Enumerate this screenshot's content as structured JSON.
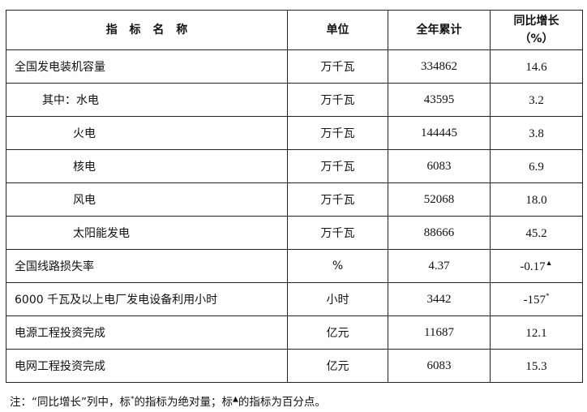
{
  "header": {
    "name": "指 标 名 称",
    "unit": "单位",
    "total": "全年累计",
    "growth_line1": "同比增长",
    "growth_line2": "（%）"
  },
  "rows": [
    {
      "name": "全国发电装机容量",
      "unit": "万千瓦",
      "total": "334862",
      "growth": "14.6",
      "mark": ""
    },
    {
      "name": "其中：水电",
      "unit": "万千瓦",
      "total": "43595",
      "growth": "3.2",
      "mark": ""
    },
    {
      "name": "火电",
      "unit": "万千瓦",
      "total": "144445",
      "growth": "3.8",
      "mark": ""
    },
    {
      "name": "核电",
      "unit": "万千瓦",
      "total": "6083",
      "growth": "6.9",
      "mark": ""
    },
    {
      "name": "风电",
      "unit": "万千瓦",
      "total": "52068",
      "growth": "18.0",
      "mark": ""
    },
    {
      "name": "太阳能发电",
      "unit": "万千瓦",
      "total": "88666",
      "growth": "45.2",
      "mark": ""
    },
    {
      "name": "全国线路损失率",
      "unit": "%",
      "total": "4.37",
      "growth": "-0.17",
      "mark": "▲"
    },
    {
      "name": "6000 千瓦及以上电厂发电设备利用小时",
      "unit": "小时",
      "total": "3442",
      "growth": "-157",
      "mark": "*"
    },
    {
      "name": "电源工程投资完成",
      "unit": "亿元",
      "total": "11687",
      "growth": "12.1",
      "mark": ""
    },
    {
      "name": "电网工程投资完成",
      "unit": "亿元",
      "total": "6083",
      "growth": "15.3",
      "mark": ""
    }
  ],
  "note": {
    "a": "注：“同比增长”列中，标",
    "star": "*",
    "b": "的指标为绝对量；标",
    "tri": "▲",
    "c": "的指标为百分点。"
  }
}
